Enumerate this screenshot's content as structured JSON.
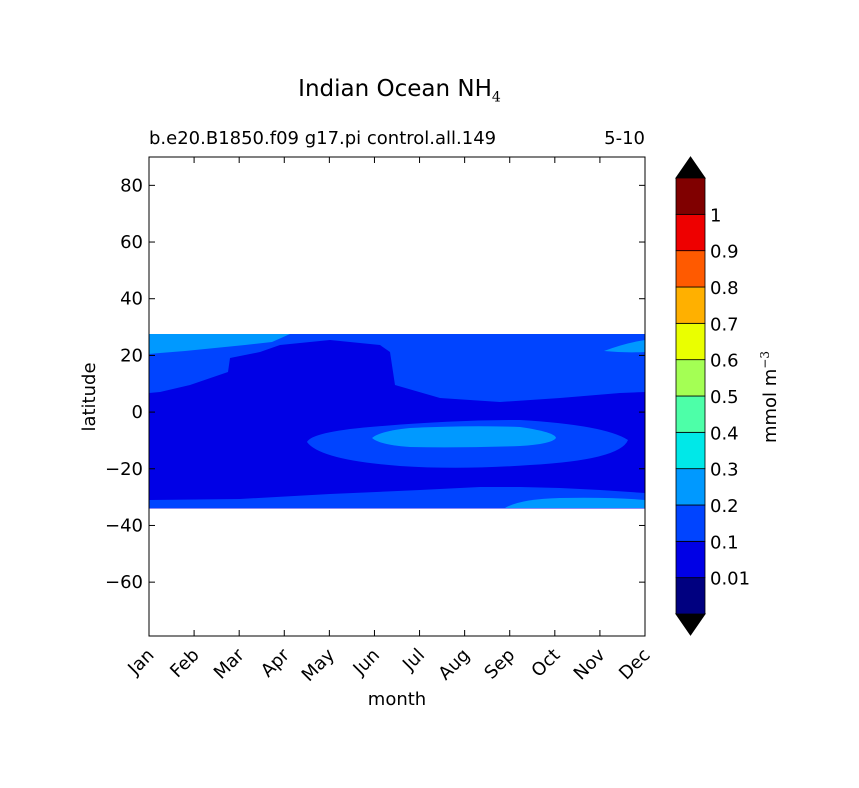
{
  "chart_data": {
    "type": "heatmap",
    "title": "Indian Ocean NH",
    "title_subscript": "4",
    "subtitle_left": "b.e20.B1850.f09 g17.pi control.all.149",
    "subtitle_right": "5-10",
    "xlabel": "month",
    "ylabel": "latitude",
    "x_categories": [
      "Jan",
      "Feb",
      "Mar",
      "Apr",
      "May",
      "Jun",
      "Jul",
      "Aug",
      "Sep",
      "Oct",
      "Nov",
      "Dec"
    ],
    "yticks": [
      80,
      60,
      40,
      20,
      0,
      -20,
      -40,
      -60
    ],
    "ylim": [
      -79,
      90
    ],
    "data_lat_range": [
      -34,
      27
    ],
    "colorbar": {
      "label": "mmol m",
      "label_superscript": "−3",
      "ticks": [
        "0.01",
        "0.1",
        "0.2",
        "0.3",
        "0.4",
        "0.5",
        "0.6",
        "0.7",
        "0.8",
        "0.9",
        "1"
      ],
      "levels": [
        0,
        0.01,
        0.1,
        0.2,
        0.3,
        0.4,
        0.5,
        0.6,
        0.7,
        0.8,
        0.9,
        1,
        1.1
      ],
      "colors": [
        "#000080",
        "#0000e6",
        "#0044ff",
        "#0099ff",
        "#00e8e8",
        "#4dffa8",
        "#a4ff54",
        "#eaff00",
        "#ffb000",
        "#ff5a00",
        "#ee0000",
        "#800000"
      ],
      "extend_colors": [
        "#000000",
        "#000000"
      ]
    },
    "region_colors": {
      "base": "#0000e6",
      "mid": "#0044ff",
      "high": "#0099ff"
    }
  }
}
